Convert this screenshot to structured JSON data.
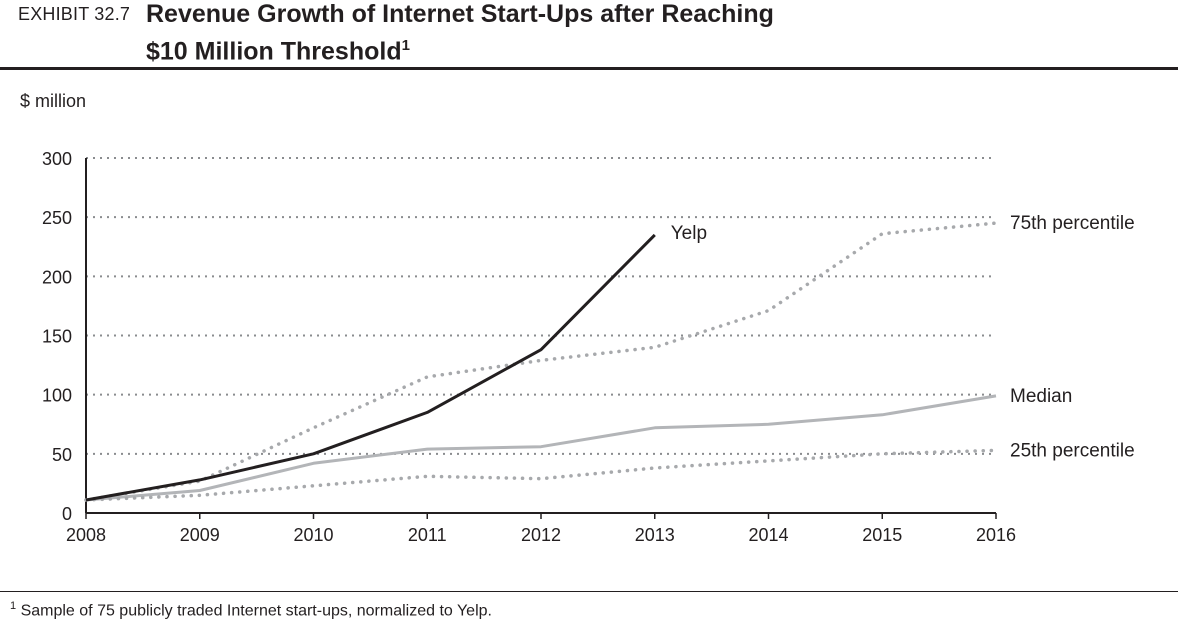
{
  "header": {
    "exhibit": "EXHIBIT 32.7",
    "title_line1": "Revenue Growth of Internet Start-Ups after Reaching",
    "title_line2": "$10 Million Threshold",
    "title_footnote_mark": "1"
  },
  "footnote": {
    "mark": "1",
    "text": "Sample of 75 publicly traded Internet start-ups, normalized to Yelp."
  },
  "chart_data": {
    "type": "line",
    "unit_label": "$ million",
    "xlabel": "",
    "ylabel": "",
    "x": [
      2008,
      2009,
      2010,
      2011,
      2012,
      2013,
      2014,
      2015,
      2016
    ],
    "ylim": [
      0,
      300
    ],
    "yticks": [
      0,
      50,
      100,
      150,
      200,
      250,
      300
    ],
    "grid": true,
    "series": [
      {
        "name": "75th percentile",
        "style": "dotted",
        "color": "#a7a9ac",
        "x": [
          2008,
          2009,
          2010,
          2011,
          2012,
          2013,
          2014,
          2015,
          2016
        ],
        "values": [
          11,
          27,
          72,
          115,
          129,
          140,
          171,
          236,
          245
        ]
      },
      {
        "name": "Median",
        "style": "solid",
        "color": "#b3b5b8",
        "x": [
          2008,
          2009,
          2010,
          2011,
          2012,
          2013,
          2014,
          2015,
          2016
        ],
        "values": [
          11,
          19,
          42,
          54,
          56,
          72,
          75,
          83,
          99
        ]
      },
      {
        "name": "25th percentile",
        "style": "dotted",
        "color": "#a7a9ac",
        "x": [
          2008,
          2009,
          2010,
          2011,
          2012,
          2013,
          2014,
          2015,
          2016
        ],
        "values": [
          11,
          15,
          23,
          31,
          29,
          38,
          44,
          50,
          53
        ]
      },
      {
        "name": "Yelp",
        "style": "solid",
        "color": "#231f20",
        "x": [
          2008,
          2009,
          2010,
          2011,
          2012,
          2013
        ],
        "values": [
          11,
          28,
          50,
          85,
          138,
          235
        ]
      }
    ]
  }
}
